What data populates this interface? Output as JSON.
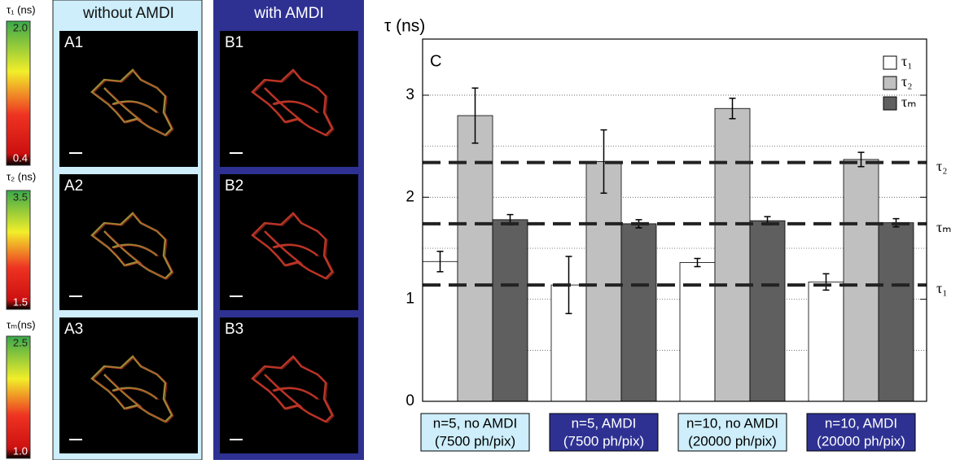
{
  "colorbars": [
    {
      "label": "τ₁ (ns)",
      "max": "2.0",
      "min": "0.4"
    },
    {
      "label": "τ₂ (ns)",
      "max": "3.5",
      "min": "1.5"
    },
    {
      "label": "τₘ(ns)",
      "max": "2.5",
      "min": "1.0"
    }
  ],
  "panels": [
    {
      "title": "without AMDI",
      "labels": [
        "A1",
        "A2",
        "A3"
      ]
    },
    {
      "title": "with AMDI",
      "labels": [
        "B1",
        "B2",
        "B3"
      ]
    }
  ],
  "chart_data": {
    "type": "bar",
    "panel_label": "C",
    "y_label": "τ (ns)",
    "categories": [
      "n=5, no AMDI",
      "n=5, AMDI",
      "n=10, no AMDI",
      "n=10, AMDI"
    ],
    "category_notes": [
      "(7500 ph/pix)",
      "(7500 ph/pix)",
      "(20000 ph/pix)",
      "(20000 ph/pix)"
    ],
    "series": [
      {
        "name": "τ₁",
        "color": "#ffffff",
        "values": [
          1.37,
          1.14,
          1.36,
          1.17
        ],
        "errors": [
          0.1,
          0.28,
          0.04,
          0.08
        ]
      },
      {
        "name": "τ₂",
        "color": "#c0c0c0",
        "values": [
          2.8,
          2.35,
          2.87,
          2.37
        ],
        "errors": [
          0.27,
          0.31,
          0.1,
          0.07
        ]
      },
      {
        "name": "τₘ",
        "color": "#5f5f5f",
        "values": [
          1.78,
          1.74,
          1.77,
          1.75
        ],
        "errors": [
          0.05,
          0.04,
          0.04,
          0.04
        ]
      }
    ],
    "reference_lines": [
      {
        "value": 2.34,
        "label": "τ₂"
      },
      {
        "value": 1.74,
        "label": "τₘ"
      },
      {
        "value": 1.14,
        "label": "τ₁"
      }
    ],
    "ylim": [
      0,
      3.55
    ],
    "yticks": [
      0,
      1,
      2,
      3
    ],
    "grid_lines": [
      0.5,
      1,
      1.5,
      2,
      2.5,
      3
    ],
    "legend": "top-right"
  }
}
